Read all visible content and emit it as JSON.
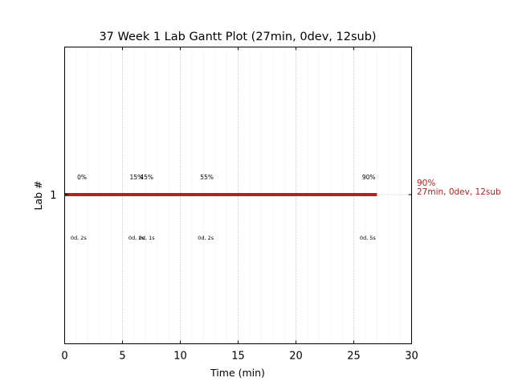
{
  "chart_data": {
    "type": "gantt",
    "title": "37 Week 1 Lab Gantt Plot (27min, 0dev, 12sub)",
    "xlabel": "Time (min)",
    "ylabel": "Lab #",
    "xlim": [
      0,
      30
    ],
    "x_ticks": [
      0,
      5,
      10,
      15,
      20,
      25,
      30
    ],
    "y_ticks": [
      {
        "value": 1,
        "label": "1"
      }
    ],
    "grid": true,
    "bars": [
      {
        "lab": 1,
        "start": 0,
        "end": 27,
        "color": "#b22222"
      }
    ],
    "progress_labels": [
      {
        "x": 1.5,
        "text": "0%"
      },
      {
        "x": 6.2,
        "text": "15%"
      },
      {
        "x": 7.1,
        "text": "45%"
      },
      {
        "x": 12.3,
        "text": "55%"
      },
      {
        "x": 26.3,
        "text": "90%"
      }
    ],
    "duration_labels": [
      {
        "x": 1.2,
        "text": "0d, 2s"
      },
      {
        "x": 6.2,
        "text": "0d, 2s"
      },
      {
        "x": 7.1,
        "text": "0d, 1s"
      },
      {
        "x": 12.2,
        "text": "0d, 2s"
      },
      {
        "x": 26.2,
        "text": "0d, 5s"
      }
    ],
    "end_annotation": {
      "line1": "90%",
      "line2": "27min, 0dev, 12sub",
      "color": "#b22222"
    }
  }
}
